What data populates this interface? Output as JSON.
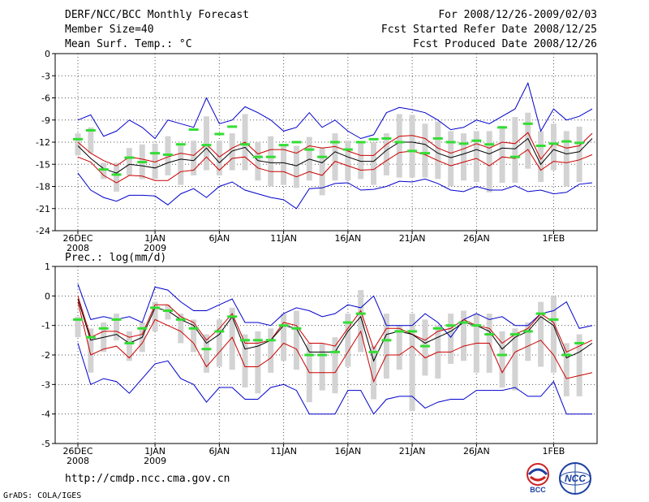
{
  "header": {
    "title": "DERF/NCC/BCC Monthly Forecast",
    "member_size": "Member Size=40",
    "variable": "Mean Surf. Temp.: °C",
    "forecast_period": "For 2008/12/26-2009/02/03",
    "started_date": "Fcst Started Refer Date 2008/12/25",
    "produced_date": "Fcst Produced Date 2008/12/26"
  },
  "footer": {
    "url": "http://cmdp.ncc.cma.gov.cn",
    "credit": "GrADS: COLA/IGES",
    "logo_bcc": "BCC",
    "logo_ncc": "NCC"
  },
  "colors": {
    "envelope": "#0000cc",
    "spread": "#cc0000",
    "mean": "#000000",
    "observed": "#33dd33",
    "box": "#d3d3d3"
  },
  "chart_data": [
    {
      "type": "line",
      "title": "Mean Surf. Temp.: °C",
      "ylim": [
        -24,
        0
      ],
      "yticks": [
        "0",
        "-3",
        "-6",
        "-9",
        "-12",
        "-15",
        "-18",
        "-21",
        "-24"
      ],
      "xticks": [
        {
          "label": "26DEC",
          "sub": "2008",
          "day": 0
        },
        {
          "label": "1JAN",
          "sub": "2009",
          "day": 6
        },
        {
          "label": "6JAN",
          "sub": "",
          "day": 11
        },
        {
          "label": "11JAN",
          "sub": "",
          "day": 16
        },
        {
          "label": "16JAN",
          "sub": "",
          "day": 21
        },
        {
          "label": "21JAN",
          "sub": "",
          "day": 26
        },
        {
          "label": "26JAN",
          "sub": "",
          "day": 31
        },
        {
          "label": "1FEB",
          "sub": "",
          "day": 37
        }
      ],
      "days": 40,
      "series": [
        {
          "name": "upper",
          "values": [
            -9,
            -8.3,
            -11.2,
            -10.5,
            -9,
            -10,
            -11.5,
            -9,
            -9.5,
            -10,
            -6,
            -9.5,
            -9,
            -7.2,
            -8,
            -9,
            -10.5,
            -10,
            -8,
            -10,
            -9,
            -10.5,
            -11.5,
            -11,
            -8,
            -7.3,
            -7.6,
            -8,
            -9,
            -10.3,
            -10,
            -9,
            -9.5,
            -8.5,
            -7.5,
            -4,
            -10.5,
            -7.5,
            -9,
            -8.5,
            -7.5
          ]
        },
        {
          "name": "spread_hi",
          "values": [
            -12,
            -13.5,
            -14.5,
            -15.2,
            -14,
            -14.3,
            -14.7,
            -14,
            -13.5,
            -13.8,
            -12.3,
            -14,
            -12.8,
            -12,
            -13.6,
            -13,
            -13,
            -13.5,
            -12.5,
            -12.8,
            -12.6,
            -13.2,
            -13.8,
            -13.8,
            -12.3,
            -11.2,
            -11.1,
            -11.5,
            -12.8,
            -13.5,
            -12.9,
            -12.2,
            -12.8,
            -12,
            -12.2,
            -10.7,
            -14.3,
            -12.2,
            -12.8,
            -12.5,
            -10.8
          ]
        },
        {
          "name": "mean",
          "values": [
            -12.5,
            -14.2,
            -15.6,
            -16.2,
            -15,
            -15.2,
            -15.5,
            -14.8,
            -14.3,
            -14.5,
            -12.8,
            -14.8,
            -13.2,
            -12.7,
            -14.5,
            -14.8,
            -14.8,
            -15.2,
            -14.3,
            -14.8,
            -13.3,
            -14,
            -14.6,
            -14.6,
            -13.1,
            -12,
            -12,
            -12.3,
            -13.5,
            -14.1,
            -13.6,
            -13,
            -13.6,
            -12.8,
            -12.9,
            -11.5,
            -15,
            -13,
            -13.6,
            -13.3,
            -11.5
          ]
        },
        {
          "name": "spread_lo",
          "values": [
            -14,
            -14.7,
            -16.5,
            -17.5,
            -16.5,
            -16.6,
            -17.2,
            -17.2,
            -16,
            -15.8,
            -14,
            -15.8,
            -14.2,
            -14,
            -15.5,
            -16,
            -16,
            -16.7,
            -16,
            -16.5,
            -14.6,
            -15.2,
            -15.8,
            -15.7,
            -14.5,
            -13.4,
            -13.2,
            -13.7,
            -14.5,
            -15.2,
            -14.7,
            -14.2,
            -15.2,
            -14,
            -14.2,
            -13,
            -15.8,
            -14.6,
            -14.8,
            -14.4,
            -13.7
          ]
        },
        {
          "name": "lower",
          "values": [
            -16.2,
            -18.5,
            -19.5,
            -20,
            -19.2,
            -19.2,
            -19.3,
            -20.5,
            -19,
            -18.3,
            -19.5,
            -18,
            -17.4,
            -18.5,
            -19,
            -19.5,
            -19.8,
            -21,
            -18.3,
            -18.2,
            -17.6,
            -17.5,
            -18.5,
            -18.4,
            -18,
            -17.3,
            -17.4,
            -17,
            -17.6,
            -18.5,
            -18.7,
            -18,
            -18.5,
            -18.5,
            -17.9,
            -18.7,
            -18.5,
            -19,
            -18.8,
            -17.7,
            -17.5
          ]
        }
      ],
      "boxes": [
        [
          -13.8,
          -10.8
        ],
        [
          -13.5,
          -10
        ],
        [
          -17,
          -14.8
        ],
        [
          -18.7,
          -14.8
        ],
        [
          -16.5,
          -12.8
        ],
        [
          -17,
          -12.3
        ],
        [
          -17,
          -12.2
        ],
        [
          -16.5,
          -11.2
        ],
        [
          -17.8,
          -12.5
        ],
        [
          -16.5,
          -11.8
        ],
        [
          -15.8,
          -8.5
        ],
        [
          -16.5,
          -11.8
        ],
        [
          -15.8,
          -10.8
        ],
        [
          -15.8,
          -8.2
        ],
        [
          -17.2,
          -12
        ],
        [
          -18,
          -11.2
        ],
        [
          -17.8,
          -12.5
        ],
        [
          -18.2,
          -12.5
        ],
        [
          -17.2,
          -11.3
        ],
        [
          -19.2,
          -12.7
        ],
        [
          -17.2,
          -10.8
        ],
        [
          -17.2,
          -11.8
        ],
        [
          -17,
          -12
        ],
        [
          -17.8,
          -12
        ],
        [
          -16.5,
          -10.8
        ],
        [
          -16.8,
          -8.2
        ],
        [
          -16.8,
          -8.3
        ],
        [
          -16.8,
          -9.5
        ],
        [
          -17,
          -9.2
        ],
        [
          -18,
          -10.5
        ],
        [
          -17.2,
          -10.8
        ],
        [
          -17.4,
          -10.5
        ],
        [
          -18.8,
          -10.5
        ],
        [
          -17.5,
          -9.8
        ],
        [
          -17.5,
          -8.6
        ],
        [
          -15.6,
          -8
        ],
        [
          -17.4,
          -10.5
        ],
        [
          -15.8,
          -9.5
        ],
        [
          -18,
          -10.5
        ],
        [
          -17.4,
          -9.9
        ]
      ],
      "observed": [
        -11.6,
        -10.4,
        -15.7,
        -16.4,
        -14.1,
        -14.7,
        -13.5,
        -13.7,
        -12.3,
        -10.3,
        -12.4,
        -10.9,
        -9.9,
        -12.3,
        -14,
        -14,
        -12.4,
        -12,
        -13,
        -14,
        -12,
        -13,
        -12,
        -11.6,
        -11.5,
        -12,
        -13.2,
        -13.5,
        -11.5,
        -12,
        -12.2,
        -11.8,
        -12.3,
        -10,
        -14,
        -9.5,
        -12.5,
        -12.2,
        -11.9,
        -12.1
      ]
    },
    {
      "type": "line",
      "title": "Prec.: log(mm/d)",
      "ylim": [
        -5,
        1
      ],
      "yticks": [
        "1",
        "0",
        "-1",
        "-2",
        "-3",
        "-4",
        "-5"
      ],
      "xticks": [
        {
          "label": "26DEC",
          "sub": "2008",
          "day": 0
        },
        {
          "label": "1JAN",
          "sub": "2009",
          "day": 6
        },
        {
          "label": "6JAN",
          "sub": "",
          "day": 11
        },
        {
          "label": "11JAN",
          "sub": "",
          "day": 16
        },
        {
          "label": "16JAN",
          "sub": "",
          "day": 21
        },
        {
          "label": "21JAN",
          "sub": "",
          "day": 26
        },
        {
          "label": "26JAN",
          "sub": "",
          "day": 31
        },
        {
          "label": "1FEB",
          "sub": "",
          "day": 37
        }
      ],
      "days": 40,
      "series": [
        {
          "name": "upper",
          "values": [
            0.4,
            -0.8,
            -0.7,
            -0.8,
            -0.7,
            -0.9,
            0.3,
            0.2,
            -0.2,
            -0.5,
            -0.5,
            -0.3,
            -0.1,
            -0.9,
            -0.9,
            -1,
            -0.6,
            -0.4,
            -0.5,
            -0.7,
            -0.6,
            -0.3,
            -0.4,
            0,
            -1,
            -1,
            -1,
            -0.6,
            -0.9,
            -1.4,
            -0.8,
            -0.6,
            -0.8,
            -0.7,
            -1,
            -1,
            -0.6,
            -0.5,
            -0.2,
            -1.1,
            -1
          ]
        },
        {
          "name": "spread_hi",
          "values": [
            0,
            -1.4,
            -1.2,
            -1.2,
            -1.4,
            -1.3,
            -0.3,
            -0.3,
            -0.7,
            -0.9,
            -1.5,
            -1.1,
            -0.6,
            -1.6,
            -1.6,
            -1.5,
            -0.9,
            -1,
            -1.6,
            -1.6,
            -1.7,
            -1.1,
            -0.5,
            -1.8,
            -1.1,
            -1.1,
            -1.3,
            -1.5,
            -1.2,
            -1.1,
            -0.8,
            -1,
            -1.1,
            -1.6,
            -1.3,
            -1.1,
            -0.6,
            -0.9,
            -1.9,
            -1.7,
            -1.5
          ]
        },
        {
          "name": "mean",
          "values": [
            -0.1,
            -1.5,
            -1.4,
            -1.3,
            -1.6,
            -1.4,
            -0.4,
            -0.5,
            -0.8,
            -1,
            -1.6,
            -1.3,
            -0.7,
            -1.8,
            -1.7,
            -1.5,
            -1,
            -1.1,
            -1.9,
            -1.9,
            -1.9,
            -1.2,
            -0.7,
            -2.2,
            -1.3,
            -1.2,
            -1.3,
            -1.6,
            -1.4,
            -1.2,
            -0.9,
            -1,
            -1.2,
            -1.8,
            -1.4,
            -1.2,
            -0.7,
            -1,
            -2.1,
            -1.9,
            -1.6
          ]
        },
        {
          "name": "spread_lo",
          "values": [
            -0.2,
            -2,
            -1.8,
            -1.7,
            -2.1,
            -1.6,
            -0.8,
            -1,
            -1.2,
            -1.6,
            -2.4,
            -1.9,
            -1.4,
            -2.4,
            -2.4,
            -2.1,
            -1.6,
            -1.8,
            -2.6,
            -2.6,
            -2.6,
            -1.9,
            -1.2,
            -2.9,
            -2,
            -2,
            -1.7,
            -2.1,
            -1.9,
            -1.9,
            -1.7,
            -1.6,
            -1.6,
            -2.6,
            -1.9,
            -1.7,
            -1.5,
            -2,
            -2.8,
            -2.7,
            -2.6
          ]
        },
        {
          "name": "lower",
          "values": [
            -1.6,
            -3,
            -2.8,
            -2.9,
            -3.3,
            -2.8,
            -2.3,
            -2.2,
            -2.8,
            -3,
            -3.6,
            -3.1,
            -3.1,
            -3.5,
            -3.5,
            -3.1,
            -3,
            -3.2,
            -4,
            -4,
            -4,
            -3.2,
            -3.2,
            -4,
            -3.5,
            -3.4,
            -3.4,
            -3.8,
            -3.6,
            -3.5,
            -3.5,
            -3.2,
            -3.2,
            -3.2,
            -3.1,
            -3.4,
            -3.4,
            -2.9,
            -4,
            -4,
            -4
          ]
        }
      ],
      "boxes": [
        [
          -1.4,
          -0.7
        ],
        [
          -2.6,
          -1.1
        ],
        [
          -1.9,
          -0.9
        ],
        [
          -1.5,
          -0.6
        ],
        [
          -2.2,
          -1.2
        ],
        [
          -1.9,
          -0.9
        ],
        [
          -1.2,
          -0.2
        ],
        [
          -0.8,
          -0.3
        ],
        [
          -1.6,
          -0.6
        ],
        [
          -1.9,
          -0.8
        ],
        [
          -2.6,
          -1.3
        ],
        [
          -2.4,
          -0.8
        ],
        [
          -2.5,
          -0.4
        ],
        [
          -3.1,
          -1.3
        ],
        [
          -3.3,
          -1.2
        ],
        [
          -2.6,
          -1.1
        ],
        [
          -2.2,
          -0.6
        ],
        [
          -2.5,
          -0.5
        ],
        [
          -3.6,
          -1.6
        ],
        [
          -3.2,
          -1.6
        ],
        [
          -3.3,
          -1.4
        ],
        [
          -2.4,
          -0.6
        ],
        [
          -1.9,
          0.2
        ],
        [
          -3.5,
          -1.7
        ],
        [
          -2.8,
          -0.6
        ],
        [
          -2.5,
          -1
        ],
        [
          -3.9,
          -0.6
        ],
        [
          -2.7,
          -0.8
        ],
        [
          -2.8,
          -1
        ],
        [
          -2.3,
          -0.6
        ],
        [
          -2.2,
          -0.5
        ],
        [
          -2.6,
          -0.6
        ],
        [
          -2.6,
          -0.6
        ],
        [
          -3.1,
          -1.2
        ],
        [
          -3.2,
          -1.1
        ],
        [
          -2.2,
          -0.9
        ],
        [
          -2.4,
          -0.2
        ],
        [
          -2.6,
          0
        ],
        [
          -3.4,
          -1.6
        ],
        [
          -3.4,
          -1.3
        ]
      ],
      "observed": [
        -0.8,
        -1.4,
        -1.1,
        -0.8,
        -1.6,
        -1.1,
        -0.4,
        -0.5,
        -0.8,
        -1.1,
        -1.8,
        -1.2,
        -0.7,
        -1.5,
        -1.5,
        -1.5,
        -1,
        -1.1,
        -2,
        -2,
        -1.9,
        -0.9,
        -0.6,
        -1.9,
        -1.5,
        -1.2,
        -1.2,
        -1.7,
        -1.1,
        -1,
        -0.9,
        -1,
        -1.3,
        -2,
        -1.3,
        -1.2,
        -0.6,
        -0.8,
        -2,
        -1.6
      ]
    }
  ]
}
